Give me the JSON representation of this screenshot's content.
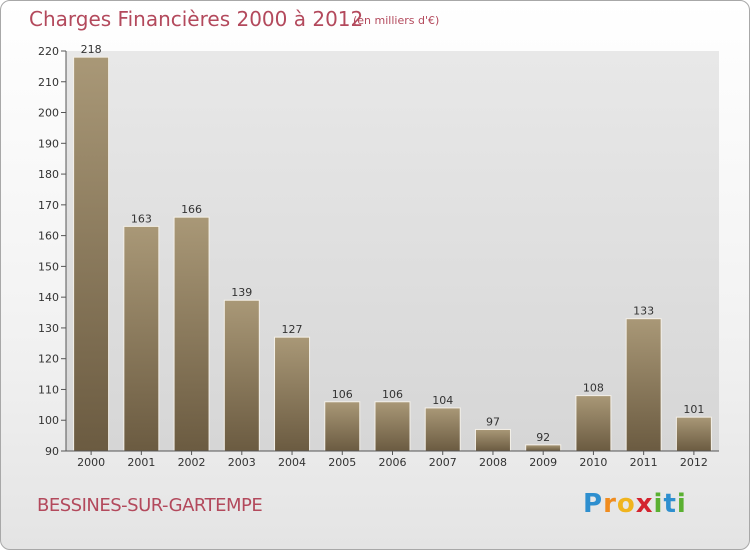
{
  "chart_data": {
    "type": "bar",
    "title": "Charges Financières 2000 à 2012",
    "subtitle": "(en milliers d'€)",
    "categories": [
      "2000",
      "2001",
      "2002",
      "2003",
      "2004",
      "2005",
      "2006",
      "2007",
      "2008",
      "2009",
      "2010",
      "2011",
      "2012"
    ],
    "values": [
      218,
      163,
      166,
      139,
      127,
      106,
      106,
      104,
      97,
      92,
      108,
      133,
      101
    ],
    "ylim": [
      90,
      220
    ],
    "yticks": [
      90,
      100,
      110,
      120,
      130,
      140,
      150,
      160,
      170,
      180,
      190,
      200,
      210,
      220
    ],
    "grid": false,
    "data_labels": true,
    "bar_color": "#8c7b5e"
  },
  "footer": {
    "commune": "BESSINES-SUR-GARTEMPE",
    "logo_letters": [
      {
        "char": "P",
        "color": "#2e8fcf"
      },
      {
        "char": "r",
        "color": "#f08c1e"
      },
      {
        "char": "o",
        "color": "#f0b41e"
      },
      {
        "char": "x",
        "color": "#d4232e"
      },
      {
        "char": "i",
        "color": "#5ab031"
      },
      {
        "char": "t",
        "color": "#2e8fcf"
      },
      {
        "char": "i",
        "color": "#5ab031"
      }
    ]
  }
}
